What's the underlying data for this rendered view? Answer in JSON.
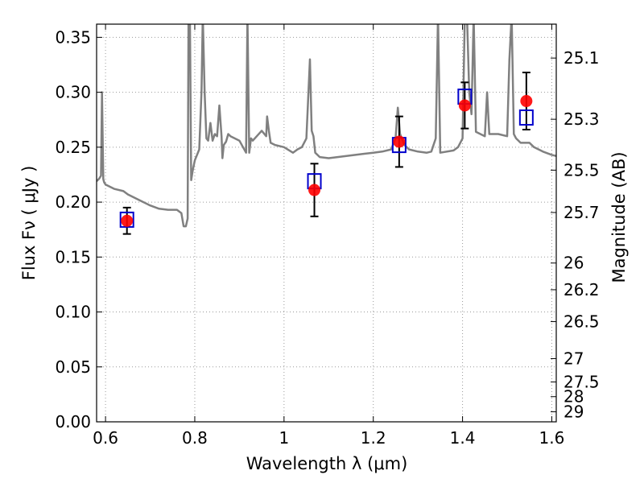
{
  "chart_data": {
    "type": "scatter",
    "xlabel": "Wavelength  λ (μm)",
    "ylabel": "Flux  Fν  ( μJy )",
    "y2label": "Magnitude (AB)",
    "xlim": [
      0.58,
      1.61
    ],
    "ylim": [
      0.0,
      0.362
    ],
    "grid": true,
    "x_ticks": [
      {
        "value": 0.6,
        "label": "0.6"
      },
      {
        "value": 0.8,
        "label": "0.8"
      },
      {
        "value": 1.0,
        "label": "1"
      },
      {
        "value": 1.2,
        "label": "1.2"
      },
      {
        "value": 1.4,
        "label": "1.4"
      },
      {
        "value": 1.6,
        "label": "1.6"
      }
    ],
    "y_ticks": [
      {
        "value": 0.0,
        "label": "0.00"
      },
      {
        "value": 0.05,
        "label": "0.05"
      },
      {
        "value": 0.1,
        "label": "0.10"
      },
      {
        "value": 0.15,
        "label": "0.15"
      },
      {
        "value": 0.2,
        "label": "0.20"
      },
      {
        "value": 0.25,
        "label": "0.25"
      },
      {
        "value": 0.3,
        "label": "0.30"
      },
      {
        "value": 0.35,
        "label": "0.35"
      }
    ],
    "y2_ticks": [
      {
        "value": 25.1,
        "label": "25.1"
      },
      {
        "value": 25.3,
        "label": "25.3"
      },
      {
        "value": 25.5,
        "label": "25.5"
      },
      {
        "value": 25.7,
        "label": "25.7"
      },
      {
        "value": 26.0,
        "label": "26"
      },
      {
        "value": 26.2,
        "label": "26.2"
      },
      {
        "value": 26.5,
        "label": "26.5"
      },
      {
        "value": 27.0,
        "label": "27"
      },
      {
        "value": 27.5,
        "label": "27.5"
      },
      {
        "value": 28.0,
        "label": "28"
      },
      {
        "value": 29.0,
        "label": "29"
      }
    ],
    "model_spectrum": {
      "color": "#808080",
      "x": [
        0.58,
        0.585,
        0.59,
        0.592,
        0.595,
        0.597,
        0.6,
        0.62,
        0.64,
        0.65,
        0.66,
        0.68,
        0.7,
        0.72,
        0.74,
        0.76,
        0.77,
        0.775,
        0.78,
        0.784,
        0.786,
        0.789,
        0.792,
        0.795,
        0.8,
        0.81,
        0.815,
        0.818,
        0.822,
        0.826,
        0.83,
        0.835,
        0.84,
        0.845,
        0.85,
        0.855,
        0.86,
        0.862,
        0.865,
        0.87,
        0.875,
        0.88,
        0.9,
        0.915,
        0.918,
        0.922,
        0.926,
        0.93,
        0.95,
        0.96,
        0.962,
        0.966,
        0.97,
        0.98,
        1.0,
        1.02,
        1.03,
        1.04,
        1.05,
        1.058,
        1.062,
        1.066,
        1.07,
        1.08,
        1.1,
        1.12,
        1.14,
        1.16,
        1.18,
        1.2,
        1.22,
        1.24,
        1.25,
        1.255,
        1.26,
        1.27,
        1.28,
        1.3,
        1.32,
        1.33,
        1.34,
        1.345,
        1.35,
        1.38,
        1.39,
        1.4,
        1.405,
        1.41,
        1.415,
        1.42,
        1.425,
        1.43,
        1.45,
        1.455,
        1.46,
        1.48,
        1.5,
        1.505,
        1.51,
        1.515,
        1.52,
        1.53,
        1.55,
        1.56,
        1.58,
        1.6,
        1.61
      ],
      "y": [
        0.219,
        0.221,
        0.224,
        0.3,
        0.221,
        0.218,
        0.216,
        0.212,
        0.21,
        0.207,
        0.205,
        0.201,
        0.197,
        0.194,
        0.193,
        0.193,
        0.19,
        0.178,
        0.178,
        0.185,
        0.37,
        0.37,
        0.22,
        0.228,
        0.238,
        0.248,
        0.3,
        0.37,
        0.3,
        0.258,
        0.256,
        0.272,
        0.256,
        0.262,
        0.26,
        0.288,
        0.26,
        0.24,
        0.252,
        0.255,
        0.262,
        0.26,
        0.256,
        0.245,
        0.37,
        0.245,
        0.258,
        0.256,
        0.265,
        0.26,
        0.278,
        0.265,
        0.254,
        0.252,
        0.25,
        0.245,
        0.248,
        0.25,
        0.258,
        0.33,
        0.265,
        0.26,
        0.245,
        0.241,
        0.24,
        0.241,
        0.242,
        0.243,
        0.244,
        0.245,
        0.246,
        0.248,
        0.258,
        0.286,
        0.262,
        0.252,
        0.248,
        0.246,
        0.245,
        0.246,
        0.258,
        0.37,
        0.245,
        0.247,
        0.25,
        0.258,
        0.37,
        0.37,
        0.3,
        0.28,
        0.37,
        0.264,
        0.26,
        0.3,
        0.262,
        0.262,
        0.26,
        0.33,
        0.37,
        0.262,
        0.258,
        0.254,
        0.254,
        0.25,
        0.246,
        0.243,
        0.242
      ]
    },
    "photometry": [
      {
        "x": 0.648,
        "y": 0.183,
        "err": 0.012,
        "model": 0.184
      },
      {
        "x": 1.068,
        "y": 0.211,
        "err": 0.024,
        "model": 0.219
      },
      {
        "x": 1.258,
        "y": 0.255,
        "err": 0.023,
        "model": 0.252
      },
      {
        "x": 1.405,
        "y": 0.288,
        "err": 0.021,
        "model": 0.296
      },
      {
        "x": 1.543,
        "y": 0.292,
        "err": 0.026,
        "model": 0.277
      }
    ],
    "colors": {
      "measured": "#ff0000",
      "model_box": "#0000cc",
      "error_bar": "#000000",
      "grid": "#9a9a9a"
    }
  }
}
